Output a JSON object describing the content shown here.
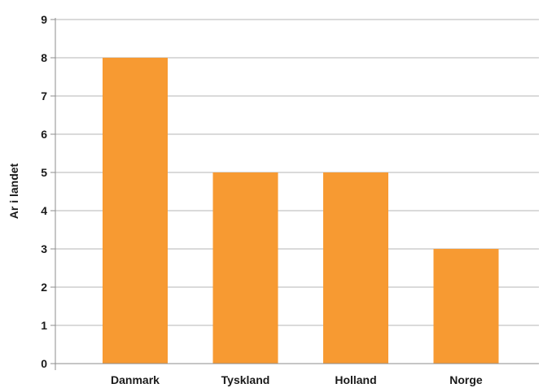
{
  "chart_data": {
    "type": "bar",
    "title": "",
    "xlabel": "",
    "ylabel": "Ar i landet",
    "categories": [
      "Danmark",
      "Tyskland",
      "Holland",
      "Norge"
    ],
    "values": [
      8,
      5,
      5,
      3
    ],
    "ylim": [
      0,
      9
    ],
    "yticks": [
      0,
      1,
      2,
      3,
      4,
      5,
      6,
      7,
      8,
      9
    ],
    "grid": true,
    "legend": "none",
    "bar_color": "#f79a32"
  }
}
